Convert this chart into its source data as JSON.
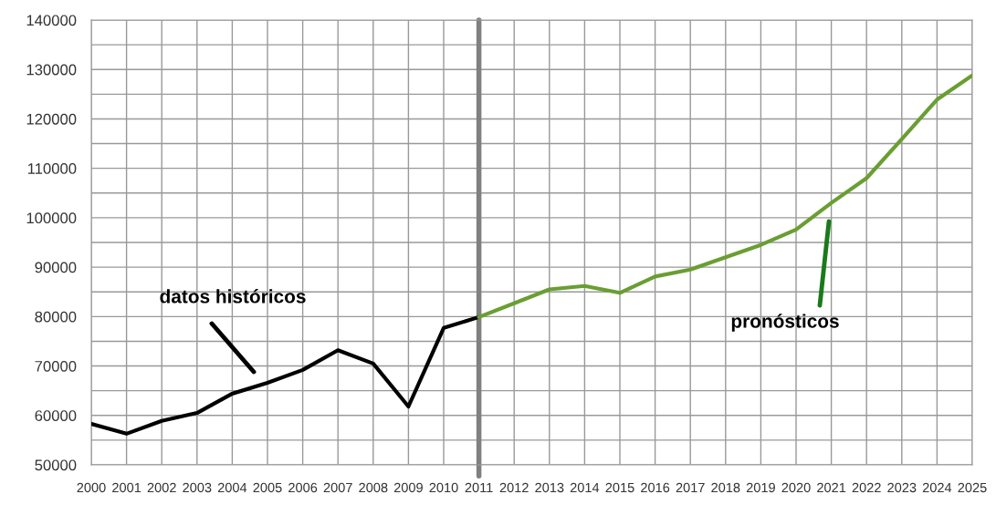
{
  "chart_data": {
    "type": "line",
    "series": [
      {
        "color": "#000000",
        "x": [
          2000,
          2001,
          2002,
          2003,
          2004,
          2005,
          2006,
          2007,
          2008,
          2009,
          2010,
          2011
        ],
        "values": [
          58300,
          56300,
          58900,
          60500,
          64400,
          66600,
          69200,
          73200,
          70500,
          61800,
          77700,
          79900
        ]
      },
      {
        "color": "#6a9e32",
        "x": [
          2011,
          2012,
          2013,
          2014,
          2015,
          2016,
          2017,
          2018,
          2019,
          2020,
          2021,
          2022,
          2023,
          2024,
          2025
        ],
        "values": [
          79900,
          82700,
          85500,
          86200,
          84800,
          88100,
          89500,
          92000,
          94500,
          97600,
          103000,
          108000,
          115900,
          123900,
          128800
        ]
      }
    ],
    "xlim": [
      2000,
      2025
    ],
    "xticks": [
      2000,
      2001,
      2002,
      2003,
      2004,
      2005,
      2006,
      2007,
      2008,
      2009,
      2010,
      2011,
      2012,
      2013,
      2014,
      2015,
      2016,
      2017,
      2018,
      2019,
      2020,
      2021,
      2022,
      2023,
      2024,
      2025
    ],
    "ylim": [
      50000,
      140000
    ],
    "yticks": [
      50000,
      {
        "value": 55000,
        "label": null
      },
      60000,
      {
        "value": 65000,
        "label": null
      },
      70000,
      {
        "value": 75000,
        "label": null
      },
      80000,
      {
        "value": 85000,
        "label": null
      },
      90000,
      {
        "value": 95000,
        "label": null
      },
      100000,
      {
        "value": 105000,
        "label": null
      },
      110000,
      {
        "value": 115000,
        "label": null
      },
      120000,
      {
        "value": 125000,
        "label": null
      },
      130000,
      {
        "value": 135000,
        "label": null
      },
      140000
    ],
    "grid": true,
    "marker": "none",
    "line_style": "solid",
    "ref_lines": [
      {
        "axis": "x",
        "value": 2011,
        "color": "#808080"
      }
    ],
    "annotations": [
      "datos históricos",
      "pronósticos"
    ]
  }
}
